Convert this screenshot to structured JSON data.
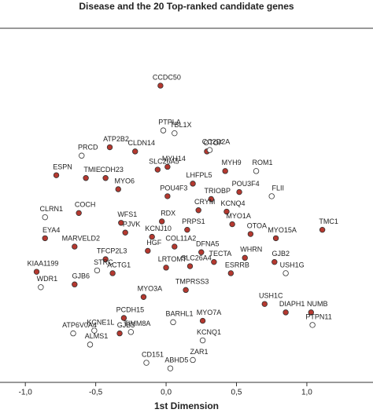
{
  "chart_data": {
    "type": "scatter",
    "title": "Disease and the 20 Top-ranked candidate genes",
    "x_label": "1st Dimension",
    "xlim": [
      -1.18,
      1.47
    ],
    "ylim": [
      -1.26,
      1.27
    ],
    "xticks": [
      {
        "value": -1.0,
        "label": "-1,0"
      },
      {
        "value": -0.5,
        "label": "-0,5"
      },
      {
        "value": 0.0,
        "label": "0,0"
      },
      {
        "value": 0.5,
        "label": "0,5"
      },
      {
        "value": 1.0,
        "label": "1,0"
      }
    ],
    "series": [
      {
        "color": "#b5382f",
        "labels": [
          "CCDC50",
          "ATP2B2",
          "CLDN14",
          "OTOF",
          "MYH14",
          "SLC26A5",
          "MYH9",
          "ESPN",
          "TMIE",
          "CDH23",
          "MYO6",
          "LHFPL5",
          "POU3F4",
          "POU4F3",
          "TRIOBP",
          "CRYM",
          "KCNQ4",
          "COCH",
          "RDX",
          "WFS1",
          "MYO1A",
          "PRPS1",
          "TMC1",
          "PJVK",
          "OTOA",
          "KCNJ10",
          "EYA4",
          "MYO15A",
          "COL11A2",
          "MARVELD2",
          "DFNA5",
          "HGF",
          "WHRN",
          "TFCP2L3",
          "GJB2",
          "TECTA",
          "SLC26A4",
          "LRTOMT",
          "ESRRB",
          "ACTG1",
          "KIAA1199",
          "GJB6",
          "TMPRSS3",
          "MYO3A",
          "USH1C",
          "DIAPH1",
          "NUMB",
          "MYO7A",
          "PCDH15",
          "GJB3"
        ],
        "x": [
          -0.04,
          -0.4,
          -0.22,
          0.29,
          0.01,
          -0.06,
          0.42,
          -0.78,
          -0.57,
          -0.43,
          -0.34,
          0.19,
          0.52,
          0.01,
          0.32,
          0.23,
          0.43,
          -0.62,
          -0.03,
          -0.32,
          0.47,
          0.15,
          1.11,
          -0.29,
          0.6,
          -0.1,
          -0.86,
          0.78,
          0.06,
          -0.65,
          0.25,
          -0.13,
          0.56,
          -0.43,
          0.77,
          0.34,
          0.17,
          0.0,
          0.46,
          -0.38,
          -0.92,
          -0.65,
          0.14,
          -0.16,
          0.7,
          0.85,
          1.03,
          0.26,
          -0.3,
          -0.33
        ],
        "y": [
          0.86,
          0.42,
          0.39,
          0.39,
          0.28,
          0.26,
          0.25,
          0.22,
          0.2,
          0.2,
          0.12,
          0.16,
          0.1,
          0.07,
          0.05,
          -0.03,
          -0.04,
          -0.05,
          -0.11,
          -0.12,
          -0.13,
          -0.17,
          -0.17,
          -0.19,
          -0.2,
          -0.22,
          -0.23,
          -0.23,
          -0.29,
          -0.29,
          -0.33,
          -0.32,
          -0.37,
          -0.38,
          -0.4,
          -0.4,
          -0.43,
          -0.44,
          -0.48,
          -0.48,
          -0.47,
          -0.56,
          -0.6,
          -0.65,
          -0.7,
          -0.76,
          -0.76,
          -0.82,
          -0.8,
          -0.91
        ]
      },
      {
        "color": "#ffffff",
        "labels": [
          "PTPLA",
          "TBL1X",
          "CC2D2A",
          "PRCD",
          "ROM1",
          "FLII",
          "CLRN1",
          "USH1G",
          "WDR1",
          "STRC",
          "KCNE1L",
          "ATP6V0A4",
          "TIMM8A",
          "ALMS1",
          "BARHL1",
          "PTPN11",
          "KCNQ1",
          "ZAR1",
          "CD151",
          "ABHD5"
        ],
        "x": [
          -0.02,
          0.06,
          0.31,
          -0.6,
          0.64,
          0.75,
          -0.86,
          0.85,
          -0.89,
          -0.49,
          -0.51,
          -0.66,
          -0.25,
          -0.54,
          0.05,
          1.04,
          0.26,
          0.19,
          -0.14,
          0.03
        ],
        "y": [
          0.54,
          0.52,
          0.4,
          0.36,
          0.25,
          0.07,
          -0.08,
          -0.48,
          -0.58,
          -0.46,
          -0.89,
          -0.91,
          -0.9,
          -0.99,
          -0.83,
          -0.85,
          -0.96,
          -1.1,
          -1.12,
          -1.16
        ]
      }
    ]
  }
}
